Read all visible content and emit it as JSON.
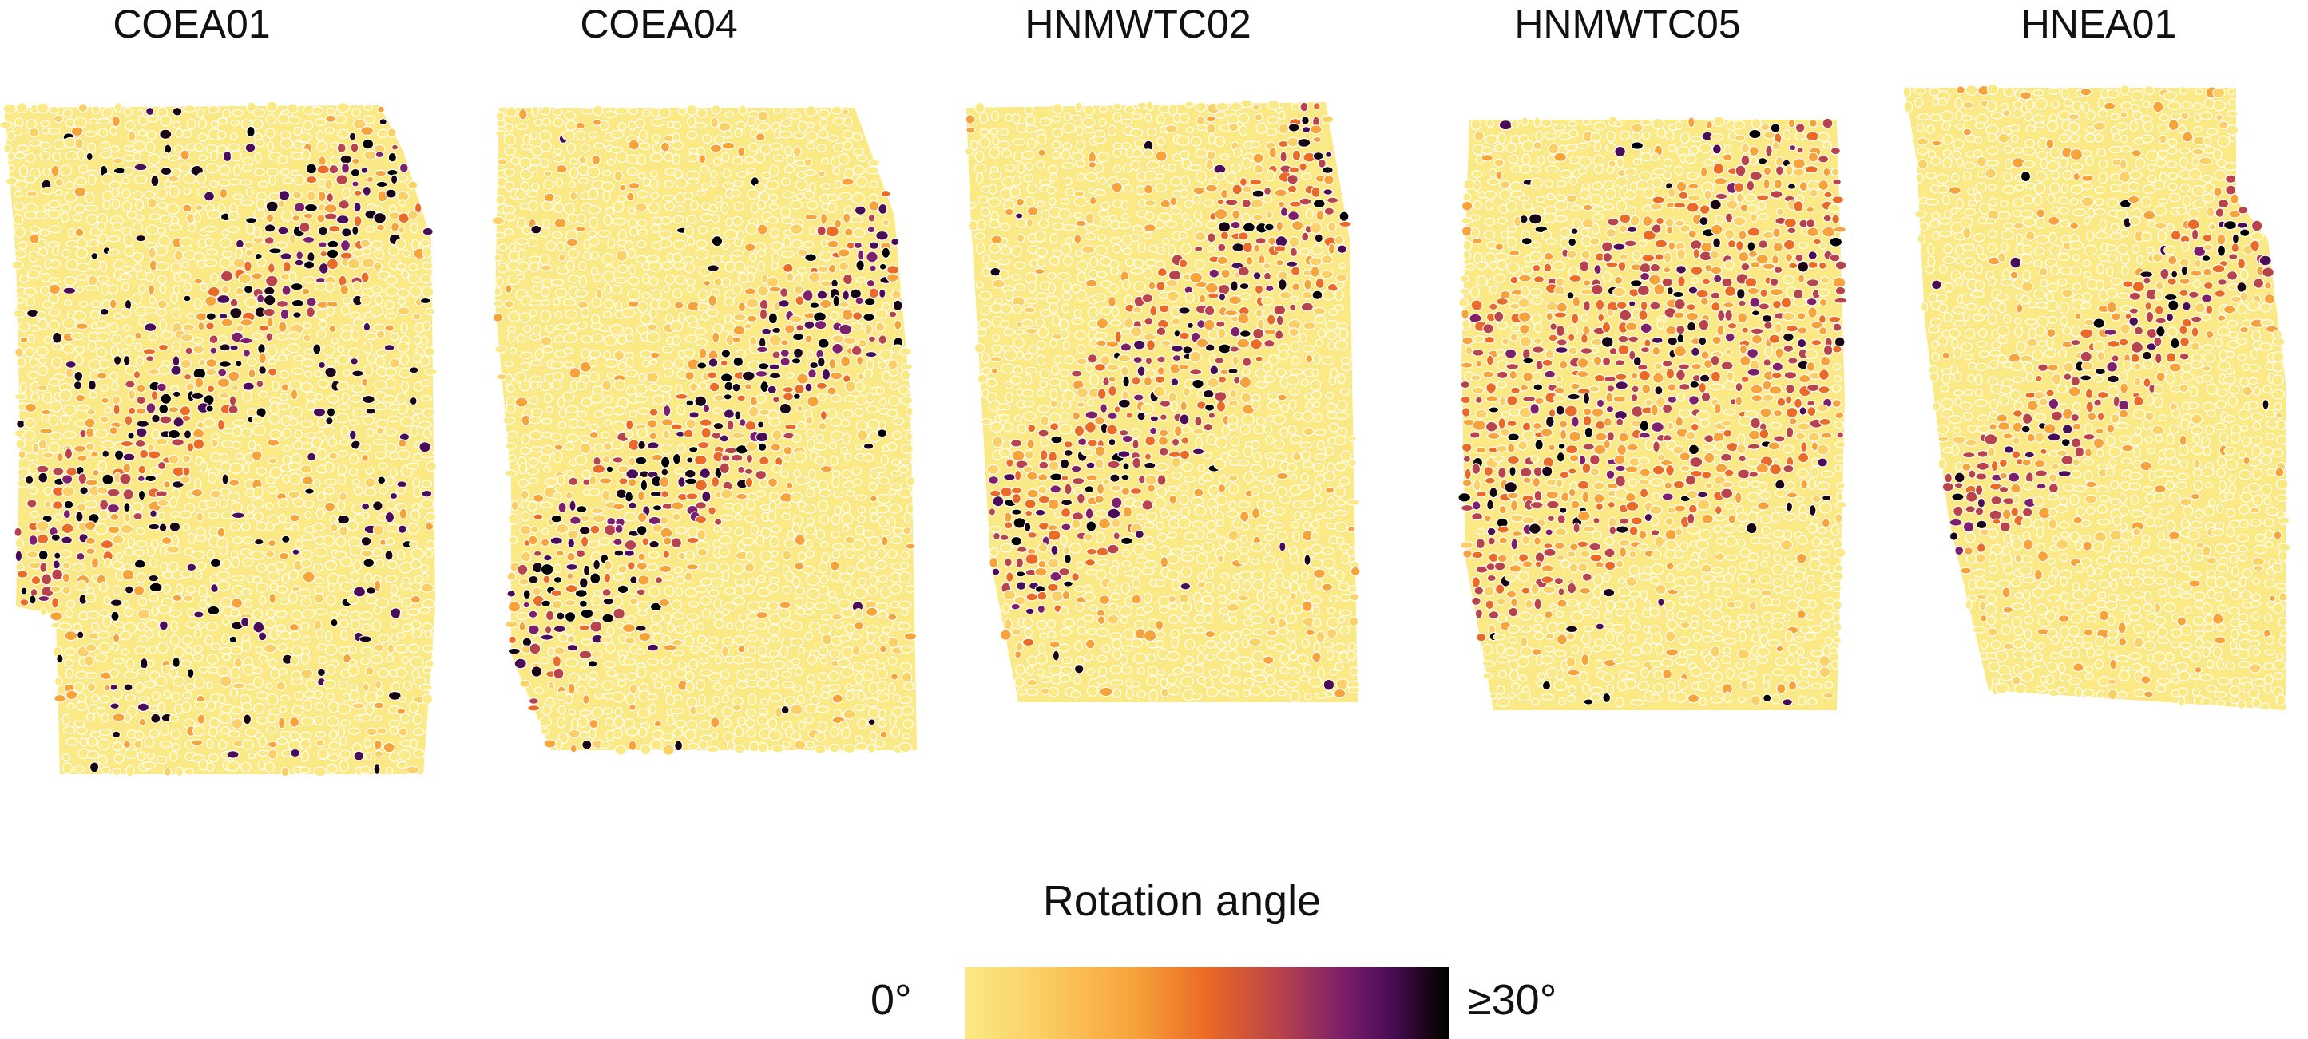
{
  "panels": [
    {
      "title": "COEA01"
    },
    {
      "title": "COEA04"
    },
    {
      "title": "HNMWTC02"
    },
    {
      "title": "HNMWTC05"
    },
    {
      "title": "HNEA01"
    }
  ],
  "legend": {
    "title": "Rotation angle",
    "min_label": "0°",
    "max_label": "≥30°",
    "colors": [
      "#fbe985",
      "#fbd066",
      "#f8a23a",
      "#eb6a25",
      "#b8434a",
      "#7d1f6a",
      "#4a0c57",
      "#170514",
      "#000000"
    ]
  }
}
